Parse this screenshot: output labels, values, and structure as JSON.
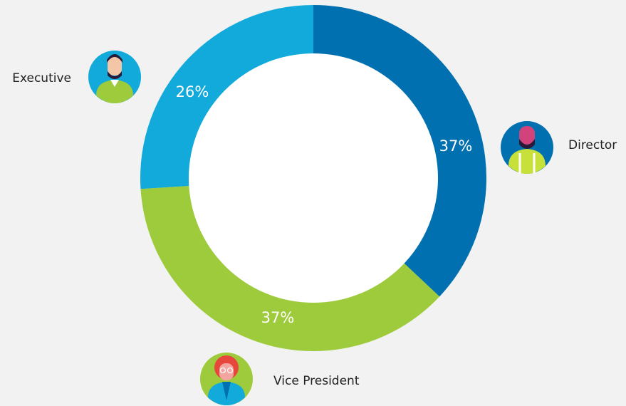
{
  "chart_data": {
    "type": "donut",
    "categories": [
      "Director",
      "Vice President",
      "Executive"
    ],
    "values": [
      37,
      37,
      26
    ],
    "value_labels": [
      "37%",
      "37%",
      "26%"
    ],
    "colors": [
      "#0070b0",
      "#9ecb3b",
      "#12a9db"
    ]
  }
}
